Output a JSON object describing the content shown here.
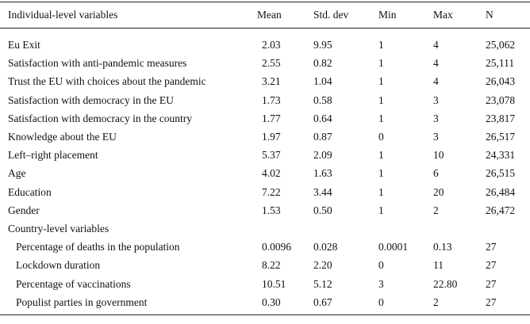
{
  "table": {
    "header": [
      "Individual-level variables",
      "Mean",
      "Std. dev",
      "Min",
      "Max",
      "N"
    ],
    "rows": [
      [
        "Eu Exit",
        "2.03",
        "9.95",
        "1",
        "4",
        "25,062"
      ],
      [
        "Satisfaction with anti-pandemic measures",
        "2.55",
        "0.82",
        "1",
        "4",
        "25,111"
      ],
      [
        "Trust the EU with choices about the pandemic",
        "3.21",
        "1.04",
        "1",
        "4",
        "26,043"
      ],
      [
        "Satisfaction with democracy in the EU",
        "1.73",
        "0.58",
        "1",
        "3",
        "23,078"
      ],
      [
        "Satisfaction with democracy in the country",
        "1.77",
        "0.64",
        "1",
        "3",
        "23,817"
      ],
      [
        "Knowledge about the EU",
        "1.97",
        "0.87",
        "0",
        "3",
        "26,517"
      ],
      [
        "Left–right placement",
        "5.37",
        "2.09",
        "1",
        "10",
        "24,331"
      ],
      [
        "Age",
        "4.02",
        "1.63",
        "1",
        "6",
        "26,515"
      ],
      [
        "Education",
        "7.22",
        "3.44",
        "1",
        "20",
        "26,484"
      ],
      [
        "Gender",
        "1.53",
        "0.50",
        "1",
        "2",
        "26,472"
      ]
    ],
    "subheading": "Country-level variables",
    "subrows": [
      [
        "Percentage of deaths in the population",
        "0.0096",
        "0.028",
        "0.0001",
        "0.13",
        "27"
      ],
      [
        "Lockdown duration",
        "8.22",
        "2.20",
        "0",
        "11",
        "27"
      ],
      [
        "Percentage of vaccinations",
        "10.51",
        "5.12",
        "3",
        "22.80",
        "27"
      ],
      [
        "Populist parties in government",
        "0.30",
        "0.67",
        "0",
        "2",
        "27"
      ]
    ]
  }
}
